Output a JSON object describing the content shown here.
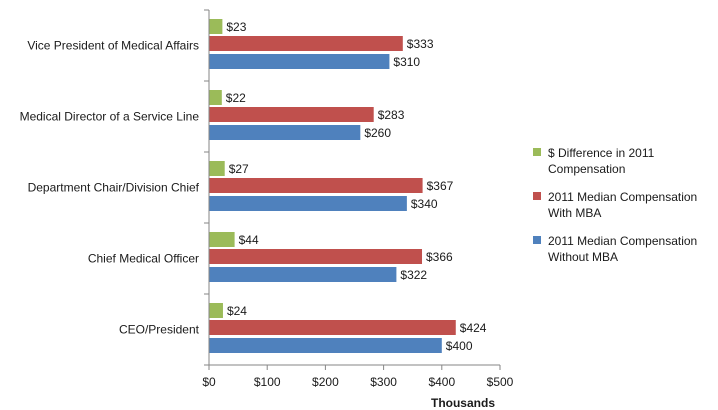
{
  "chart_data": {
    "type": "bar",
    "orientation": "horizontal",
    "title": "",
    "xlabel": "Thousands",
    "ylabel": "",
    "xlim": [
      0,
      500
    ],
    "x_ticks": [
      "$0",
      "$100",
      "$200",
      "$300",
      "$400",
      "$500"
    ],
    "grid": false,
    "legend_position": "right",
    "categories": [
      "Vice President of Medical Affairs",
      "Medical Director of a Service Line",
      "Department Chair/Division Chief",
      "Chief Medical Officer",
      "CEO/President"
    ],
    "series": [
      {
        "name": "$ Difference in 2011 Compensation",
        "legend_lines": [
          "$ Difference in 2011",
          "Compensation"
        ],
        "color": "#9bbb59",
        "values": [
          23,
          22,
          27,
          44,
          24
        ],
        "labels": [
          "$23",
          "$22",
          "$27",
          "$44",
          "$24"
        ]
      },
      {
        "name": "2011 Median Compensation With MBA",
        "legend_lines": [
          "2011 Median Compensation",
          "With MBA"
        ],
        "color": "#c0504d",
        "values": [
          333,
          283,
          367,
          366,
          424
        ],
        "labels": [
          "$333",
          "$283",
          "$367",
          "$366",
          "$424"
        ]
      },
      {
        "name": "2011 Median Compensation Without MBA",
        "legend_lines": [
          "2011 Median Compensation",
          "Without MBA"
        ],
        "color": "#4f81bd",
        "values": [
          310,
          260,
          340,
          322,
          400
        ],
        "labels": [
          "$310",
          "$260",
          "$340",
          "$322",
          "$400"
        ]
      }
    ]
  }
}
